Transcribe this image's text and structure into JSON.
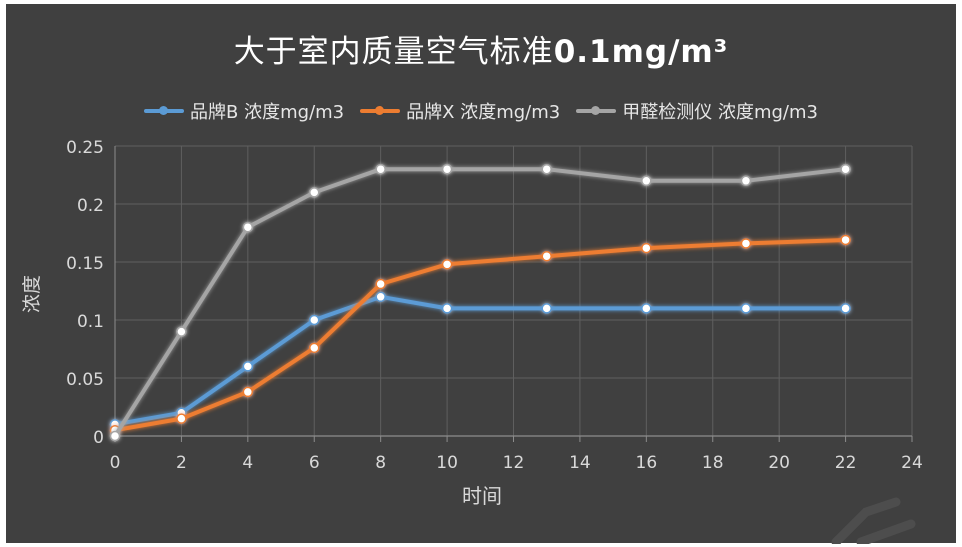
{
  "chart_data": {
    "type": "line",
    "title_main": "大于室内质量空气标准",
    "title_value": "0.1mg/m³",
    "xlabel": "时间",
    "ylabel": "浓度",
    "xlim": [
      0,
      24
    ],
    "ylim": [
      0,
      0.25
    ],
    "x_ticks": [
      "0",
      "2",
      "4",
      "6",
      "8",
      "10",
      "12",
      "14",
      "16",
      "18",
      "20",
      "22",
      "24"
    ],
    "y_ticks": [
      "0",
      "0.05",
      "0.1",
      "0.15",
      "0.2",
      "0.25"
    ],
    "grid": true,
    "legend_position": "top",
    "series": [
      {
        "name": "品牌B 浓度mg/m3",
        "color": "#5b9bd5",
        "x": [
          0,
          2,
          4,
          6,
          8,
          10,
          13,
          16,
          19,
          22
        ],
        "values": [
          0.01,
          0.02,
          0.06,
          0.1,
          0.12,
          0.11,
          0.11,
          0.11,
          0.11,
          0.11
        ]
      },
      {
        "name": "品牌X 浓度mg/m3",
        "color": "#ed7d31",
        "x": [
          0,
          2,
          4,
          6,
          8,
          10,
          13,
          16,
          19,
          22
        ],
        "values": [
          0.005,
          0.015,
          0.038,
          0.076,
          0.131,
          0.148,
          0.155,
          0.162,
          0.166,
          0.169
        ]
      },
      {
        "name": "甲醛检测仪 浓度mg/m3",
        "color": "#a5a5a5",
        "x": [
          0,
          2,
          4,
          6,
          8,
          10,
          13,
          16,
          19,
          22
        ],
        "values": [
          0.0,
          0.09,
          0.18,
          0.21,
          0.23,
          0.23,
          0.23,
          0.22,
          0.22,
          0.23
        ]
      }
    ]
  }
}
